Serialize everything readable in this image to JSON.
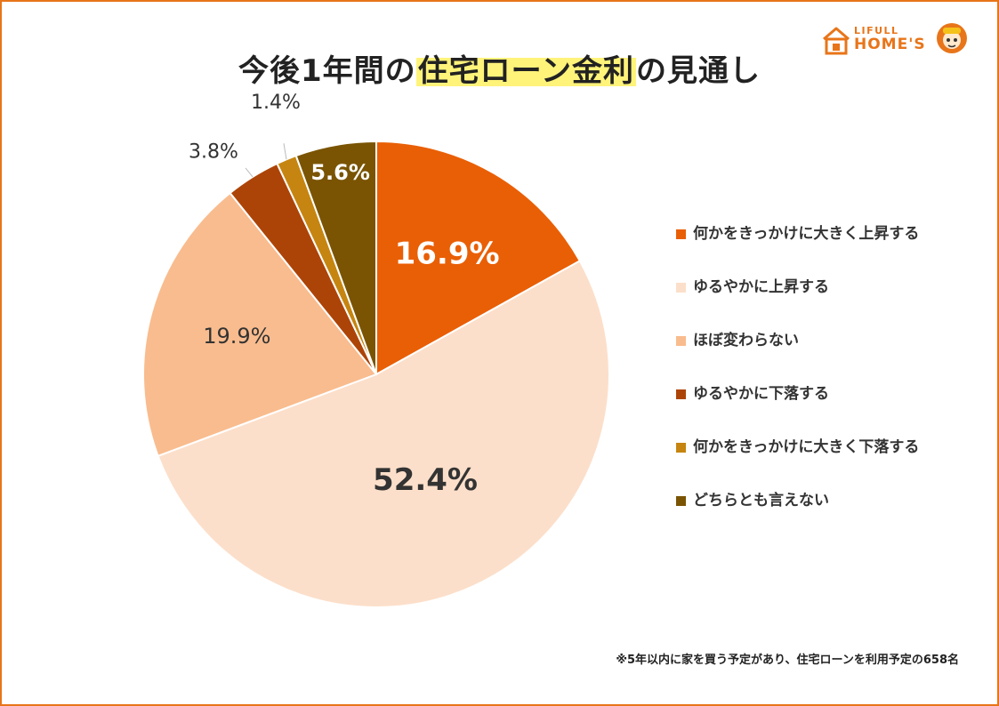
{
  "title": {
    "pre": "今後1年間の",
    "highlight": "住宅ローン金利",
    "post": "の見通し"
  },
  "brand": {
    "line1": "LIFULL",
    "line2": "HOME'S"
  },
  "footnote": "※5年以内に家を買う予定があり、住宅ローンを利用予定の658名",
  "chart_data": {
    "type": "pie",
    "start_angle_deg": 0,
    "direction": "clockwise",
    "slices": [
      {
        "label": "何かをきっかけに大きく上昇する",
        "value": 16.9,
        "display": "16.9%",
        "color": "#E95F05",
        "label_color": "#ffffff"
      },
      {
        "label": "ゆるやかに上昇する",
        "value": 52.4,
        "display": "52.4%",
        "color": "#FCDFCA",
        "label_color": "#333333"
      },
      {
        "label": "ほぼ変わらない",
        "value": 19.9,
        "display": "19.9%",
        "color": "#F9BC8E",
        "label_color": "#333333"
      },
      {
        "label": "ゆるやかに下落する",
        "value": 3.8,
        "display": "3.8%",
        "color": "#AD4407",
        "label_color": "#333333"
      },
      {
        "label": "何かをきっかけに大きく下落する",
        "value": 1.4,
        "display": "1.4%",
        "color": "#C68510",
        "label_color": "#333333"
      },
      {
        "label": "どちらとも言えない",
        "value": 5.6,
        "display": "5.6%",
        "color": "#7A5403",
        "label_color": "#ffffff"
      }
    ]
  }
}
